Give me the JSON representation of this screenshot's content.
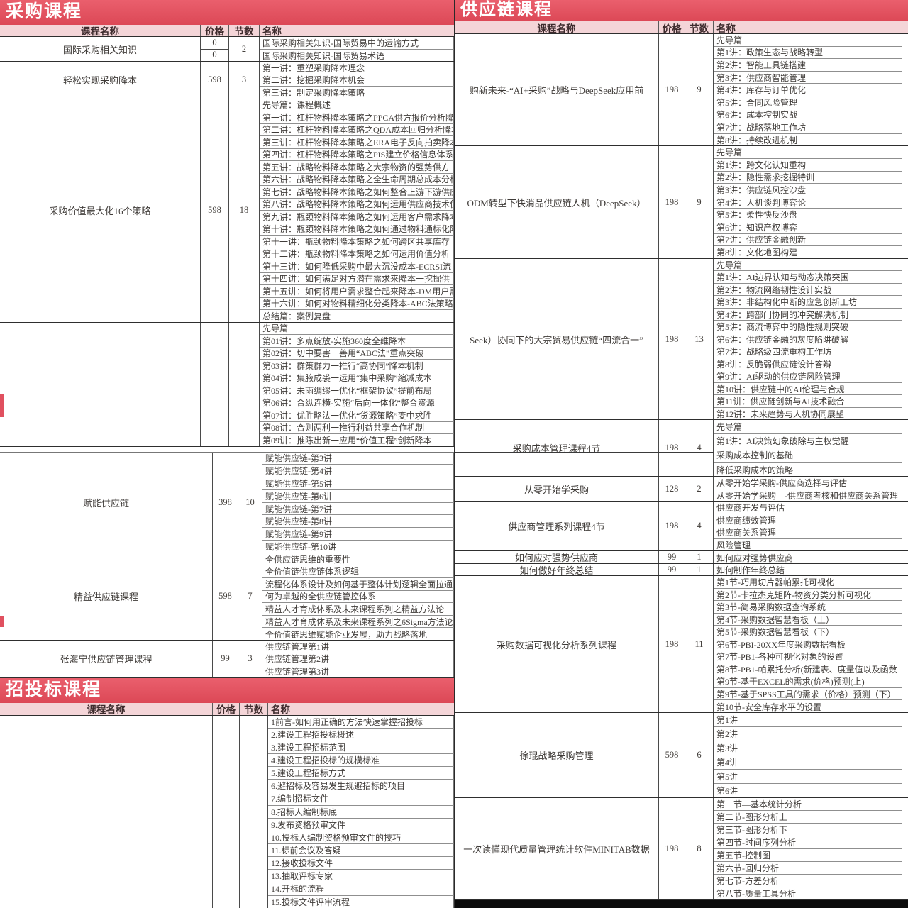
{
  "colors": {
    "banner_red": "#e15260",
    "header_pink": "#f4d5d8",
    "text_dark": "#3f3b38"
  },
  "left": {
    "banner": "采购课程",
    "headers": [
      "课程名称",
      "价格",
      "节数",
      "名称"
    ],
    "top_groups": [
      {
        "name": "国际采购相关知识",
        "prices": [
          "0",
          "0"
        ],
        "sessions": "2",
        "lessons": [
          "国际采购相关知识-国际贸易中的运输方式",
          "国际采购相关知识-国际贸易术语"
        ]
      },
      {
        "name": "轻松实现采购降本",
        "price": "598",
        "sessions": "3",
        "lessons": [
          "第一讲：重塑采购降本理念",
          "第二讲：挖掘采购降本机会",
          "第三讲：制定采购降本策略"
        ]
      },
      {
        "name": "采购价值最大化16个策略",
        "price": "598",
        "sessions": "18",
        "lessons": [
          "先导篇：课程概述",
          "第一讲：杠杆物料降本策略之PPCA供方报价分析降本",
          "第二讲：杠杆物料降本策略之QDA成本回归分析降本",
          "第三讲：杠杆物料降本策略之ERA电子反向拍卖降本",
          "第四讲：杠杆物料降本策略之PIS建立价格信息体系",
          "第五讲：战略物料降本策略之大宗物资的强势供方",
          "第六讲：战略物料降本策略之全生命周期总成本分析",
          "第七讲：战略物料降本策略之如何整合上游下游供应",
          "第八讲：战略物料降本策略之如何运用供应商技术优",
          "第九讲：瓶颈物料降本策略之如何运用客户需求降本",
          "第十讲：瓶颈物料降本策略之如何通过物料通标化降",
          "第十一讲：瓶颈物料降本策略之如何跨区共享库存",
          "第十二讲：瓶颈物料降本策略之如何运用价值分析",
          "第十三讲：如何降低采购中最大沉没成本-ECRSI流",
          "第十四讲：如何满足对方潜在需求来降本一挖掘供",
          "第十五讲：如何将用户需求整合起来降本-DM用户需",
          "第十六讲：如何对物料精细化分类降本-ABC法策略",
          "总结篇：案例复盘"
        ]
      },
      {
        "name": "",
        "price": "",
        "sessions": "",
        "lessons": [
          "先导篇",
          "第01讲：多点绽放-实施360度全维降本",
          "第02讲：切中要害一善用“ABC法”重点突破",
          "第03讲：群策群力一推行“高协同”降本机制",
          "第04讲：集腋成裘一运用“集中采购”缩减成本",
          "第05讲：未雨绸缪一优化“框架协议”提前布局",
          "第06讲：合纵连横-实施“后向一体化”整合资源",
          "第07讲：优胜略汰一优化“货源策略”变中求胜",
          "第08讲：合则两利一推行利益共享合作机制",
          "第09讲：推陈出新一应用“价值工程”创新降本"
        ]
      }
    ],
    "lower_groups": [
      {
        "name": "赋能供应链",
        "price": "398",
        "sessions": "10",
        "lessons": [
          "赋能供应链-第3讲",
          "赋能供应链-第4讲",
          "赋能供应链-第5讲",
          "赋能供应链-第6讲",
          "赋能供应链-第7讲",
          "赋能供应链-第8讲",
          "赋能供应链-第9讲",
          "赋能供应链-第10讲"
        ]
      },
      {
        "name": "精益供应链课程",
        "price": "598",
        "sessions": "7",
        "lessons": [
          "全供应链思维的重要性",
          "全价值链供应链体系逻辑",
          "流程化体系设计及如何基于整体计划逻辑全面拉通",
          "何为卓越的全供应链管控体系",
          "精益人才育成体系及未来课程系列之精益方法论",
          "精益人才育成体系及未来课程系列之6Sigma方法论",
          "全价值链思维赋能企业发展，助力战略落地"
        ]
      },
      {
        "name": "张海宁供应链管理课程",
        "price": "99",
        "sessions": "3",
        "lessons": [
          "供应链管理第1讲",
          "供应链管理第2讲",
          "供应链管理第3讲"
        ]
      }
    ],
    "bidding": {
      "banner": "招投标课程",
      "headers": [
        "课程名称",
        "价格",
        "节数",
        "名称"
      ],
      "groups": [
        {
          "name": "",
          "price": "",
          "sessions": "",
          "lessons": [
            "1前言-如何用正确的方法快速掌握招投标",
            "2.建设工程招投标概述",
            "3.建设工程招标范围",
            "4.建设工程招投标的规模标准",
            "5.建设工程招标方式",
            "6.避招标及容易发生规避招标的项目",
            "7.编制招标文件",
            "8.招标人编制标底",
            "9.发布资格预审文件",
            "10.投标人编制资格预审文件的技巧",
            "11.标前会议及答疑",
            "12.接收投标文件",
            "13.抽取评标专家",
            "14.开标的流程",
            "15.投标文件评审流程"
          ]
        }
      ]
    }
  },
  "right": {
    "banner": "供应链课程",
    "headers": [
      "课程名称",
      "价格",
      "节数",
      "名称"
    ],
    "groups": [
      {
        "name": "购新未来-“AI+采购”战略与DeepSeek应用前",
        "price": "198",
        "sessions": "9",
        "lessons": [
          "先导篇",
          "第1讲：政策生态与战略转型",
          "第2讲：智能工具链搭建",
          "第3讲：供应商智能管理",
          "第4讲：库存与订单优化",
          "第5讲：合同风险管理",
          "第6讲：成本控制实战",
          "第7讲：战略落地工作坊",
          "第8讲：持续改进机制"
        ]
      },
      {
        "name": "ODM转型下快消品供应链人机（DeepSeek）",
        "price": "198",
        "sessions": "9",
        "lessons": [
          "先导篇",
          "第1讲：跨文化认知重构",
          "第2讲：隐性需求挖掘特训",
          "第3讲：供应链风控沙盘",
          "第4讲：人机谈判博弈论",
          "第5讲：柔性快反沙盘",
          "第6讲：知识产权博弈",
          "第7讲：供应链金融创新",
          "第8讲：文化地图构建"
        ]
      },
      {
        "name": "Seek）协同下的大宗贸易供应链“四流合一”",
        "price": "198",
        "sessions": "13",
        "lessons": [
          "先导篇",
          "第1讲：AI边界认知与动态决策突围",
          "第2讲：物流网络韧性设计实战",
          "第3讲：非结构化中断的应急创新工坊",
          "第4讲：跨部门协同的冲突解决机制",
          "第5讲：商流博弈中的隐性规则突破",
          "第6讲：供应链金融的灰度陷阱破解",
          "第7讲：战略级四流重构工作坊",
          "第8讲：反脆弱供应链设计答辩",
          "第9讲：AI驱动的供应链风险管理",
          "第10讲：供应链中的AI伦理与合规",
          "第11讲：供应链创新与AI技术融合",
          "第12讲：未来趋势与人机协同展望"
        ]
      },
      {
        "name": "采购成本管理课程4节",
        "price": "198",
        "sessions": "4",
        "lessons": [
          "先导篇",
          "第1讲：AI决策幻象破除与主权觉醒",
          "采购成本控制的基础",
          "降低采购成本的策略"
        ]
      },
      {
        "name": "从零开始学采购",
        "price": "128",
        "sessions": "2",
        "lessons": [
          "从零开始学采购-供应商选择与评估",
          "从零开始学采购—-供应商考核和供应商关系管理"
        ]
      },
      {
        "name": "供应商管理系列课程4节",
        "price": "198",
        "sessions": "4",
        "lessons": [
          "供应商开发与评估",
          "供应商绩效管理",
          "供应商关系管理",
          "风险管理"
        ]
      },
      {
        "name": "如何应对强势供应商",
        "price": "99",
        "sessions": "1",
        "lessons": [
          "如何应对强势供应商"
        ]
      },
      {
        "name": "如何做好年终总结",
        "price": "99",
        "sessions": "1",
        "lessons": [
          "如何制作年终总结"
        ]
      },
      {
        "name": "采购数据可视化分析系列课程",
        "price": "198",
        "sessions": "11",
        "lessons": [
          "第1节-巧用切片器帕累托可视化",
          "第2节-卡拉杰克矩阵-物资分类分析可视化",
          "第3节-简易采购数据查询系统",
          "第4节-采购数据智慧看板（上）",
          "第5节-采购数据智慧看板（下）",
          "第6节-PBI-20XX年度采购数据看板",
          "第7节-PB1-各种可视化对象的设置",
          "第8节-PB1-帕累托分析(新建表、度量值以及函数",
          "第9节-基于EXCEL的需求(价格)预测(上)",
          "第9节-基于SPSS工具的需求（价格）预测（下）",
          "第10节-安全库存水平的设置"
        ]
      },
      {
        "name": "徐琨战略采购管理",
        "price": "598",
        "sessions": "6",
        "lessons": [
          "第1讲",
          "第2讲",
          "第3讲",
          "第4讲",
          "第5讲",
          "第6讲"
        ]
      },
      {
        "name": "一次读懂现代质量管理统计软件MINITAB数据",
        "price": "198",
        "sessions": "8",
        "lessons": [
          "第一节—基本统计分析",
          "第二节-图形分析上",
          "第三节-图形分析下",
          "第四节-时间序列分析",
          "第五节-控制图",
          "第六节-回归分析",
          "第七节-方差分析",
          "第八节-质量工具分析"
        ]
      }
    ]
  }
}
